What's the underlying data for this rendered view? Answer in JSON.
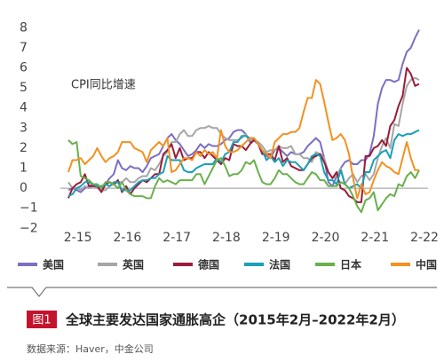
{
  "chart_data": {
    "type": "line",
    "annotation": "CPI同比增速",
    "categories": [
      null,
      "2-15",
      null,
      null,
      null,
      null,
      null,
      null,
      null,
      null,
      null,
      null,
      null,
      "2-16",
      null,
      null,
      null,
      null,
      null,
      null,
      null,
      null,
      null,
      null,
      null,
      "2-17",
      null,
      null,
      null,
      null,
      null,
      null,
      null,
      null,
      null,
      null,
      null,
      "2-18",
      null,
      null,
      null,
      null,
      null,
      null,
      null,
      null,
      null,
      null,
      null,
      "2-19",
      null,
      null,
      null,
      null,
      null,
      null,
      null,
      null,
      null,
      null,
      null,
      "2-20",
      null,
      null,
      null,
      null,
      null,
      null,
      null,
      null,
      null,
      null,
      null,
      "2-21",
      null,
      null,
      null,
      null,
      null,
      null,
      null,
      null,
      null,
      null,
      null,
      "2-22"
    ],
    "ylim": [
      -2.5,
      8.5
    ],
    "yticks": [
      8,
      7,
      6,
      5,
      4,
      3,
      2,
      1,
      0,
      {
        "value": -1,
        "label": "−1"
      },
      {
        "value": -2,
        "label": "−2"
      }
    ],
    "legend": "bottom",
    "series": [
      {
        "name": "美国",
        "color": "#7b6fc4",
        "values": [
          -0.1,
          0.0,
          -0.1,
          -0.2,
          0.0,
          0.1,
          0.2,
          0.2,
          0.0,
          0.2,
          0.5,
          0.7,
          1.4,
          1.0,
          0.9,
          1.1,
          1.0,
          1.0,
          0.8,
          1.1,
          1.5,
          1.6,
          1.7,
          2.1,
          2.5,
          2.7,
          2.4,
          2.2,
          1.9,
          1.6,
          1.7,
          1.9,
          2.2,
          2.0,
          2.2,
          2.1,
          2.1,
          2.2,
          2.4,
          2.5,
          2.8,
          2.9,
          2.9,
          2.7,
          2.3,
          2.5,
          2.2,
          1.9,
          1.6,
          1.5,
          1.9,
          2.0,
          1.8,
          1.6,
          1.8,
          1.7,
          1.7,
          1.8,
          2.1,
          2.3,
          2.5,
          2.3,
          1.5,
          0.3,
          0.1,
          0.6,
          1.0,
          1.3,
          1.4,
          1.2,
          1.2,
          1.4,
          1.4,
          1.7,
          2.6,
          4.2,
          5.0,
          5.4,
          5.4,
          5.3,
          5.4,
          6.2,
          6.8,
          7.0,
          7.5,
          7.9
        ]
      },
      {
        "name": "英国",
        "color": "#a6a6a6",
        "values": [
          0.3,
          0.0,
          0.0,
          -0.1,
          0.1,
          0.0,
          0.1,
          0.0,
          -0.1,
          -0.1,
          0.1,
          0.2,
          0.3,
          0.3,
          0.5,
          0.3,
          0.3,
          0.5,
          0.6,
          0.6,
          1.0,
          0.9,
          1.2,
          1.6,
          1.8,
          2.3,
          2.3,
          2.7,
          2.9,
          2.6,
          2.6,
          2.9,
          3.0,
          3.0,
          3.1,
          3.0,
          3.0,
          2.7,
          2.5,
          2.4,
          2.4,
          2.4,
          2.5,
          2.7,
          2.4,
          2.4,
          2.3,
          2.1,
          1.8,
          1.9,
          1.9,
          2.1,
          2.0,
          2.0,
          2.1,
          1.7,
          1.7,
          1.5,
          1.5,
          1.3,
          1.8,
          1.7,
          1.5,
          0.8,
          0.5,
          0.6,
          1.0,
          0.2,
          0.5,
          0.7,
          0.3,
          0.6,
          0.7,
          0.4,
          0.7,
          1.5,
          2.1,
          2.5,
          2.0,
          3.2,
          3.1,
          4.2,
          5.1,
          5.4,
          5.5,
          5.4
        ]
      },
      {
        "name": "德国",
        "color": "#9b1b3a",
        "values": [
          -0.5,
          0.0,
          0.2,
          0.3,
          0.7,
          0.1,
          0.1,
          0.1,
          -0.2,
          0.2,
          0.3,
          0.2,
          0.4,
          -0.2,
          0.1,
          -0.3,
          0.0,
          0.2,
          0.4,
          0.3,
          0.5,
          0.7,
          0.7,
          1.7,
          1.9,
          2.2,
          1.5,
          2.0,
          1.4,
          1.5,
          1.5,
          1.8,
          1.8,
          1.5,
          1.8,
          1.6,
          1.4,
          1.2,
          1.5,
          1.4,
          2.2,
          2.1,
          2.1,
          1.9,
          2.2,
          2.4,
          2.2,
          1.7,
          1.7,
          1.7,
          1.4,
          2.1,
          1.3,
          1.5,
          1.1,
          1.0,
          0.9,
          0.9,
          1.2,
          1.5,
          1.6,
          1.7,
          1.3,
          0.8,
          0.5,
          0.8,
          0.0,
          -0.1,
          -0.4,
          -0.5,
          -0.7,
          -0.7,
          1.6,
          1.6,
          2.0,
          2.1,
          2.4,
          2.1,
          3.1,
          3.4,
          4.1,
          4.6,
          6.0,
          5.7,
          5.1,
          5.2
        ]
      },
      {
        "name": "法国",
        "color": "#1aa0b8",
        "values": [
          -0.4,
          -0.3,
          0.0,
          0.1,
          0.3,
          0.3,
          0.2,
          0.1,
          0.1,
          0.2,
          0.1,
          0.3,
          0.3,
          -0.1,
          -0.1,
          -0.1,
          0.1,
          0.3,
          0.4,
          0.4,
          0.5,
          0.5,
          0.7,
          0.8,
          1.6,
          1.4,
          1.4,
          1.4,
          0.9,
          0.8,
          0.8,
          1.0,
          1.1,
          1.2,
          1.2,
          1.2,
          1.5,
          1.3,
          1.7,
          1.8,
          2.3,
          2.3,
          2.6,
          2.6,
          2.5,
          2.5,
          2.2,
          1.9,
          1.4,
          1.6,
          1.3,
          1.5,
          1.1,
          1.4,
          1.3,
          1.3,
          1.1,
          0.9,
          1.2,
          1.6,
          1.7,
          1.6,
          0.8,
          0.4,
          0.4,
          0.2,
          0.9,
          0.2,
          0.0,
          0.1,
          0.2,
          0.0,
          0.8,
          0.8,
          1.4,
          1.6,
          1.8,
          1.9,
          1.5,
          2.4,
          2.7,
          2.6,
          2.7,
          2.7,
          2.8,
          2.9
        ]
      },
      {
        "name": "日本",
        "color": "#6ab04c",
        "values": [
          2.4,
          2.2,
          2.3,
          0.6,
          0.5,
          0.4,
          0.2,
          0.2,
          0.0,
          0.3,
          0.3,
          0.2,
          0.0,
          0.3,
          -0.1,
          -0.3,
          -0.4,
          -0.4,
          -0.4,
          -0.5,
          -0.5,
          0.1,
          0.5,
          0.3,
          0.4,
          0.3,
          0.2,
          0.4,
          0.4,
          0.4,
          0.4,
          0.7,
          0.7,
          0.2,
          0.6,
          1.0,
          1.4,
          1.5,
          1.1,
          0.6,
          0.7,
          0.7,
          0.9,
          1.3,
          1.2,
          1.4,
          0.8,
          0.3,
          0.2,
          0.2,
          0.5,
          0.9,
          0.7,
          0.7,
          0.5,
          0.3,
          0.2,
          0.2,
          0.5,
          0.8,
          0.7,
          0.4,
          0.4,
          0.1,
          0.1,
          0.1,
          0.3,
          0.2,
          0.0,
          -0.4,
          -0.9,
          -1.2,
          -0.6,
          -0.5,
          -0.2,
          -1.1,
          -0.8,
          -0.5,
          -0.3,
          -0.4,
          0.2,
          0.1,
          0.6,
          0.8,
          0.5,
          0.9
        ]
      },
      {
        "name": "中国",
        "color": "#f39121",
        "values": [
          0.8,
          1.4,
          1.4,
          1.5,
          1.2,
          1.4,
          1.6,
          2.0,
          1.6,
          1.3,
          1.5,
          1.6,
          1.8,
          2.3,
          2.3,
          2.3,
          2.0,
          1.9,
          1.8,
          1.3,
          1.9,
          2.1,
          2.3,
          2.1,
          2.5,
          0.8,
          0.9,
          1.2,
          1.5,
          1.5,
          1.4,
          1.8,
          1.6,
          1.9,
          1.7,
          1.8,
          1.5,
          2.9,
          2.1,
          1.8,
          1.8,
          1.9,
          2.1,
          2.3,
          2.5,
          2.5,
          2.2,
          1.9,
          1.7,
          1.5,
          2.3,
          2.5,
          2.7,
          2.7,
          2.8,
          2.8,
          3.0,
          3.8,
          4.5,
          4.5,
          5.4,
          5.2,
          4.3,
          3.3,
          2.4,
          2.5,
          2.7,
          2.4,
          1.7,
          0.5,
          -0.5,
          0.2,
          -0.3,
          -0.2,
          0.4,
          0.9,
          1.3,
          1.1,
          1.0,
          0.8,
          0.7,
          1.5,
          2.3,
          1.5,
          0.9,
          0.9
        ]
      }
    ]
  },
  "figure": {
    "label": "图1",
    "title": "全球主要发达国家通胀高企（2015年2月–2022年2月）",
    "source": "数据来源：Haver，中金公司"
  }
}
